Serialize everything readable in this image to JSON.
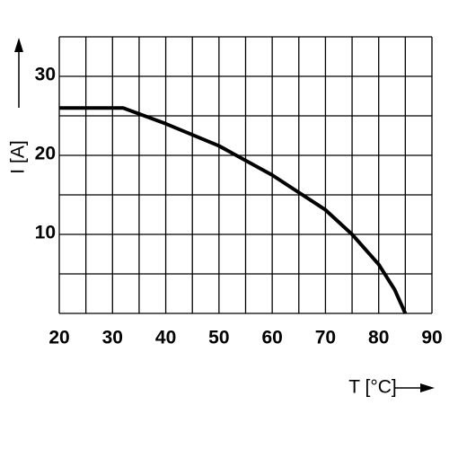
{
  "chart_data": {
    "type": "line",
    "xlabel": "T [°C]",
    "ylabel": "I [A]",
    "series": [
      {
        "color": "#000000",
        "x": [
          20,
          32,
          40,
          50,
          60,
          70,
          75,
          80,
          83,
          85
        ],
        "values": [
          26,
          26,
          24,
          21.2,
          17.5,
          13.1,
          10,
          6.2,
          3,
          0
        ]
      }
    ],
    "xlim": [
      20,
      90
    ],
    "xticks": [
      20,
      30,
      40,
      50,
      60,
      70,
      80,
      90
    ],
    "minor_xticks": [
      25,
      35,
      45,
      55,
      65,
      75,
      85
    ],
    "ylim": [
      0,
      35
    ],
    "yticks": [
      10,
      20,
      30
    ],
    "minor_yticks": [
      5,
      15,
      25,
      35
    ],
    "grid": true
  }
}
